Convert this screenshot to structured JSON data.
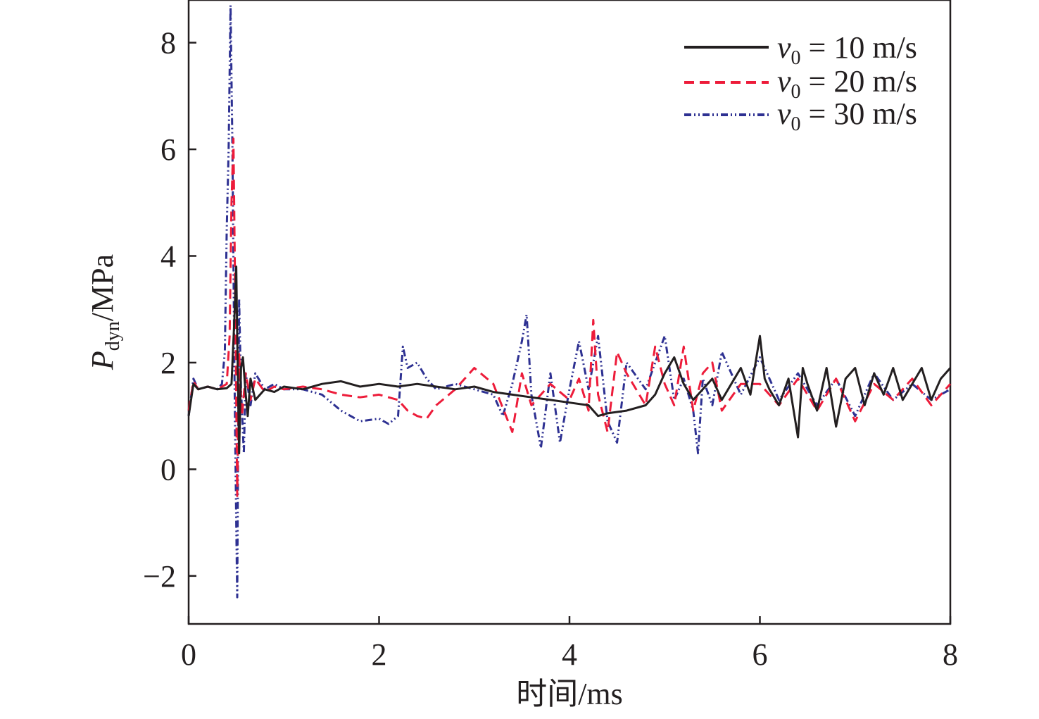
{
  "chart_data": {
    "type": "line",
    "xlabel": "时间/ms",
    "ylabel": {
      "symbol": "P",
      "subscript": "dyn",
      "unit": "/MPa"
    },
    "xlim": [
      0,
      8
    ],
    "ylim": [
      -2.9,
      8.8
    ],
    "xticks": [
      0,
      2,
      4,
      6,
      8
    ],
    "yticks": [
      -2,
      0,
      2,
      4,
      6,
      8
    ],
    "xtick_labels": [
      "0",
      "2",
      "4",
      "6",
      "8"
    ],
    "ytick_labels": [
      "−2",
      "0",
      "2",
      "4",
      "6",
      "8"
    ],
    "grid": false,
    "legend_position": "top-right",
    "series": [
      {
        "name": "v0 = 10 m/s",
        "legend": {
          "symbol": "v",
          "subscript": "0",
          "text": " = 10 m/s"
        },
        "color": "#231f20",
        "dash": "solid",
        "x": [
          0.0,
          0.05,
          0.1,
          0.2,
          0.3,
          0.4,
          0.45,
          0.48,
          0.5,
          0.51,
          0.53,
          0.55,
          0.57,
          0.6,
          0.62,
          0.65,
          0.7,
          0.8,
          0.9,
          1.0,
          1.2,
          1.4,
          1.6,
          1.8,
          2.0,
          2.2,
          2.4,
          2.6,
          2.8,
          3.0,
          3.2,
          3.4,
          3.6,
          3.8,
          4.0,
          4.2,
          4.3,
          4.4,
          4.6,
          4.8,
          4.9,
          5.0,
          5.1,
          5.2,
          5.3,
          5.4,
          5.5,
          5.6,
          5.7,
          5.8,
          5.9,
          6.0,
          6.05,
          6.1,
          6.2,
          6.3,
          6.4,
          6.45,
          6.5,
          6.6,
          6.7,
          6.8,
          6.9,
          7.0,
          7.1,
          7.2,
          7.3,
          7.4,
          7.5,
          7.6,
          7.7,
          7.8,
          7.9,
          8.0
        ],
        "values": [
          1.0,
          1.6,
          1.5,
          1.55,
          1.5,
          1.52,
          1.6,
          2.8,
          3.8,
          2.5,
          0.3,
          1.9,
          2.1,
          1.4,
          1.0,
          1.7,
          1.3,
          1.5,
          1.45,
          1.55,
          1.5,
          1.6,
          1.65,
          1.55,
          1.6,
          1.55,
          1.6,
          1.55,
          1.5,
          1.55,
          1.45,
          1.4,
          1.35,
          1.3,
          1.25,
          1.2,
          1.0,
          1.05,
          1.1,
          1.2,
          1.4,
          1.8,
          2.1,
          1.6,
          1.3,
          1.5,
          1.7,
          1.3,
          1.6,
          1.9,
          1.4,
          2.5,
          1.7,
          1.5,
          1.2,
          1.7,
          0.6,
          1.9,
          1.6,
          1.1,
          1.9,
          0.8,
          1.7,
          1.9,
          1.2,
          1.8,
          1.4,
          1.9,
          1.3,
          1.6,
          1.9,
          1.3,
          1.7,
          1.9
        ]
      },
      {
        "name": "v0 = 20 m/s",
        "legend": {
          "symbol": "v",
          "subscript": "0",
          "text": " = 20 m/s"
        },
        "color": "#ed1c3a",
        "dash": "dashed",
        "x": [
          0.0,
          0.05,
          0.1,
          0.2,
          0.3,
          0.4,
          0.43,
          0.45,
          0.47,
          0.49,
          0.51,
          0.53,
          0.56,
          0.6,
          0.65,
          0.7,
          0.8,
          0.9,
          1.0,
          1.2,
          1.4,
          1.6,
          1.8,
          2.0,
          2.2,
          2.3,
          2.4,
          2.5,
          2.6,
          2.8,
          3.0,
          3.2,
          3.4,
          3.5,
          3.6,
          3.8,
          4.0,
          4.1,
          4.2,
          4.25,
          4.3,
          4.4,
          4.5,
          4.6,
          4.8,
          4.9,
          5.0,
          5.1,
          5.2,
          5.3,
          5.4,
          5.5,
          5.6,
          5.8,
          6.0,
          6.2,
          6.4,
          6.6,
          6.8,
          7.0,
          7.2,
          7.4,
          7.6,
          7.8,
          8.0
        ],
        "values": [
          1.1,
          1.65,
          1.5,
          1.55,
          1.5,
          1.6,
          2.5,
          5.0,
          6.2,
          3.0,
          -0.5,
          2.2,
          1.0,
          1.8,
          1.3,
          1.7,
          1.45,
          1.55,
          1.5,
          1.55,
          1.5,
          1.4,
          1.35,
          1.4,
          1.3,
          1.1,
          1.0,
          0.95,
          1.2,
          1.5,
          1.9,
          1.6,
          0.7,
          1.8,
          1.2,
          1.6,
          1.3,
          1.7,
          1.1,
          2.8,
          1.4,
          0.7,
          2.2,
          1.8,
          1.2,
          2.3,
          1.6,
          1.2,
          2.3,
          1.1,
          1.8,
          2.0,
          1.1,
          1.6,
          1.6,
          1.2,
          1.7,
          1.1,
          1.7,
          0.9,
          1.6,
          1.3,
          1.7,
          1.2,
          1.6
        ]
      },
      {
        "name": "v0 = 30 m/s",
        "legend": {
          "symbol": "v",
          "subscript": "0",
          "text": " = 30 m/s"
        },
        "color": "#2e3192",
        "dash": "dashdot",
        "x": [
          0.0,
          0.05,
          0.1,
          0.2,
          0.3,
          0.35,
          0.38,
          0.4,
          0.42,
          0.44,
          0.46,
          0.48,
          0.5,
          0.51,
          0.52,
          0.53,
          0.55,
          0.58,
          0.6,
          0.65,
          0.7,
          0.8,
          0.9,
          1.0,
          1.2,
          1.4,
          1.6,
          1.8,
          2.0,
          2.1,
          2.2,
          2.25,
          2.3,
          2.4,
          2.5,
          2.6,
          2.8,
          3.0,
          3.2,
          3.3,
          3.4,
          3.5,
          3.55,
          3.6,
          3.7,
          3.8,
          3.9,
          4.0,
          4.1,
          4.2,
          4.3,
          4.4,
          4.5,
          4.6,
          4.8,
          5.0,
          5.1,
          5.2,
          5.3,
          5.35,
          5.4,
          5.5,
          5.6,
          5.8,
          6.0,
          6.2,
          6.4,
          6.6,
          6.8,
          7.0,
          7.2,
          7.4,
          7.6,
          7.8,
          8.0
        ],
        "values": [
          1.0,
          1.7,
          1.5,
          1.55,
          1.5,
          1.6,
          2.2,
          4.5,
          6.0,
          8.7,
          6.0,
          2.0,
          -1.0,
          -2.4,
          0.5,
          3.2,
          1.5,
          0.3,
          1.8,
          1.2,
          1.8,
          1.5,
          1.6,
          1.5,
          1.5,
          1.4,
          1.1,
          0.9,
          0.95,
          0.85,
          1.0,
          2.3,
          1.9,
          2.0,
          1.7,
          1.5,
          1.6,
          1.5,
          1.4,
          1.0,
          1.6,
          2.4,
          2.9,
          1.4,
          0.4,
          1.8,
          0.5,
          1.5,
          2.4,
          1.5,
          2.5,
          0.9,
          0.5,
          2.0,
          1.5,
          2.5,
          1.3,
          1.7,
          1.1,
          0.3,
          1.7,
          1.2,
          2.2,
          1.4,
          2.1,
          1.3,
          1.8,
          1.2,
          1.7,
          1.0,
          1.8,
          1.3,
          1.6,
          1.3,
          1.5
        ]
      }
    ]
  }
}
